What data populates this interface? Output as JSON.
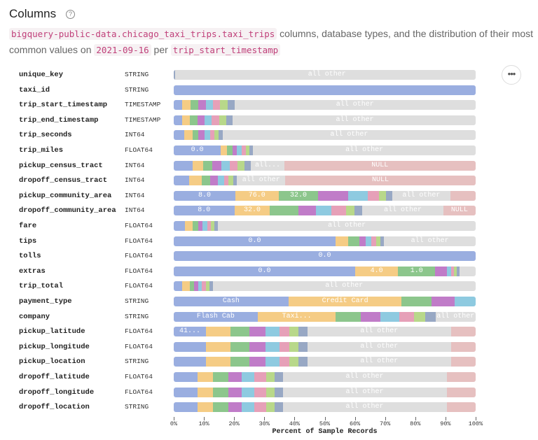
{
  "header": {
    "title": "Columns",
    "help_icon": "question-circle-icon",
    "desc": {
      "table": "bigquery-public-data.chicago_taxi_trips.taxi_trips",
      "text1": " columns, database types, and the distribution of their most common values on ",
      "date": "2021-09-16",
      "text2": " per ",
      "partition": "trip_start_timestamp"
    }
  },
  "more_button": "•••",
  "palette": {
    "c1": "#9aaee0",
    "c2": "#f5cc85",
    "c3": "#8cc68c",
    "c4": "#c07cc8",
    "c5": "#8ecae0",
    "c6": "#e6a0b8",
    "c7": "#b8d88a",
    "c8": "#98a8c4",
    "other": "#dedede",
    "null": "#e6c0c0"
  },
  "chart_data": {
    "type": "bar",
    "orientation": "horizontal",
    "stacked": true,
    "xlabel": "Percent of Sample Records",
    "xlim": [
      0,
      100
    ],
    "ticks": [
      "0%",
      "10%",
      "20%",
      "30%",
      "40%",
      "50%",
      "60%",
      "70%",
      "80%",
      "90%",
      "100%"
    ],
    "rows": [
      {
        "name": "unique_key",
        "type": "STRING",
        "segments": [
          {
            "v": 0.5,
            "c": "c8"
          },
          {
            "v": 1,
            "c": "other"
          },
          {
            "v": 98.5,
            "c": "other",
            "label": "all other"
          }
        ]
      },
      {
        "name": "taxi_id",
        "type": "STRING",
        "segments": [
          {
            "v": 100,
            "c": "c1"
          }
        ]
      },
      {
        "name": "trip_start_timestamp",
        "type": "TIMESTAMP",
        "segments": [
          {
            "v": 2.9,
            "c": "c1"
          },
          {
            "v": 2.7,
            "c": "c2"
          },
          {
            "v": 2.6,
            "c": "c3"
          },
          {
            "v": 2.4,
            "c": "c4"
          },
          {
            "v": 2.5,
            "c": "c5"
          },
          {
            "v": 2.2,
            "c": "c6"
          },
          {
            "v": 2.6,
            "c": "c7"
          },
          {
            "v": 2.2,
            "c": "c8"
          },
          {
            "v": 79.9,
            "c": "other",
            "label": "all other"
          }
        ]
      },
      {
        "name": "trip_end_timestamp",
        "type": "TIMESTAMP",
        "segments": [
          {
            "v": 2.9,
            "c": "c1"
          },
          {
            "v": 2.5,
            "c": "c2"
          },
          {
            "v": 2.5,
            "c": "c3"
          },
          {
            "v": 2.3,
            "c": "c4"
          },
          {
            "v": 2.4,
            "c": "c5"
          },
          {
            "v": 2.4,
            "c": "c6"
          },
          {
            "v": 2.4,
            "c": "c7"
          },
          {
            "v": 2.2,
            "c": "c8"
          },
          {
            "v": 80.8,
            "c": "other",
            "label": "all other"
          }
        ]
      },
      {
        "name": "trip_seconds",
        "type": "INT64",
        "segments": [
          {
            "v": 3.5,
            "c": "c1"
          },
          {
            "v": 2.7,
            "c": "c2"
          },
          {
            "v": 2.0,
            "c": "c3"
          },
          {
            "v": 1.9,
            "c": "c4"
          },
          {
            "v": 1.9,
            "c": "c5"
          },
          {
            "v": 1.5,
            "c": "c6"
          },
          {
            "v": 1.4,
            "c": "c7"
          },
          {
            "v": 1.3,
            "c": "c8"
          },
          {
            "v": 83.8,
            "c": "other",
            "label": "all other"
          }
        ]
      },
      {
        "name": "trip_miles",
        "type": "FLOAT64",
        "segments": [
          {
            "v": 15.6,
            "c": "c1",
            "label": "0.0"
          },
          {
            "v": 2.0,
            "c": "c2"
          },
          {
            "v": 1.8,
            "c": "c3"
          },
          {
            "v": 1.5,
            "c": "c4"
          },
          {
            "v": 1.6,
            "c": "c5"
          },
          {
            "v": 1.4,
            "c": "c6"
          },
          {
            "v": 1.2,
            "c": "c7"
          },
          {
            "v": 1.2,
            "c": "c8"
          },
          {
            "v": 73.7,
            "c": "other",
            "label": "all other"
          }
        ]
      },
      {
        "name": "pickup_census_tract",
        "type": "INT64",
        "segments": [
          {
            "v": 6.3,
            "c": "c1"
          },
          {
            "v": 3.4,
            "c": "c2"
          },
          {
            "v": 3.0,
            "c": "c3"
          },
          {
            "v": 3.0,
            "c": "c4"
          },
          {
            "v": 2.9,
            "c": "c5"
          },
          {
            "v": 2.5,
            "c": "c6"
          },
          {
            "v": 2.4,
            "c": "c7"
          },
          {
            "v": 2.1,
            "c": "c8"
          },
          {
            "v": 11.0,
            "c": "other",
            "label": "all..."
          },
          {
            "v": 63.4,
            "c": "null",
            "label": "NULL"
          }
        ]
      },
      {
        "name": "dropoff_census_tract",
        "type": "INT64",
        "segments": [
          {
            "v": 5.2,
            "c": "c1"
          },
          {
            "v": 4.0,
            "c": "c2"
          },
          {
            "v": 2.9,
            "c": "c3"
          },
          {
            "v": 2.6,
            "c": "c4"
          },
          {
            "v": 1.9,
            "c": "c5"
          },
          {
            "v": 1.4,
            "c": "c6"
          },
          {
            "v": 1.7,
            "c": "c7"
          },
          {
            "v": 1.3,
            "c": "c8"
          },
          {
            "v": 15.9,
            "c": "other",
            "label": "all other"
          },
          {
            "v": 63.1,
            "c": "null",
            "label": "NULL"
          }
        ]
      },
      {
        "name": "pickup_community_area",
        "type": "INT64",
        "segments": [
          {
            "v": 20.4,
            "c": "c1",
            "label": "8.0"
          },
          {
            "v": 14.3,
            "c": "c2",
            "label": "76.0"
          },
          {
            "v": 13.2,
            "c": "c3",
            "label": "32.0"
          },
          {
            "v": 9.8,
            "c": "c4"
          },
          {
            "v": 6.6,
            "c": "c5"
          },
          {
            "v": 3.6,
            "c": "c6"
          },
          {
            "v": 2.4,
            "c": "c7"
          },
          {
            "v": 2.1,
            "c": "c8"
          },
          {
            "v": 19.2,
            "c": "other",
            "label": "all other"
          },
          {
            "v": 8.4,
            "c": "null"
          }
        ]
      },
      {
        "name": "dropoff_community_area",
        "type": "INT64",
        "segments": [
          {
            "v": 20.1,
            "c": "c1",
            "label": "8.0"
          },
          {
            "v": 11.8,
            "c": "c2",
            "label": "32.0"
          },
          {
            "v": 9.4,
            "c": "c3"
          },
          {
            "v": 5.7,
            "c": "c4"
          },
          {
            "v": 5.2,
            "c": "c5"
          },
          {
            "v": 4.8,
            "c": "c6"
          },
          {
            "v": 2.9,
            "c": "c7"
          },
          {
            "v": 2.6,
            "c": "c8"
          },
          {
            "v": 26.8,
            "c": "other",
            "label": "all other"
          },
          {
            "v": 10.7,
            "c": "null",
            "label": "NULL"
          }
        ]
      },
      {
        "name": "fare",
        "type": "FLOAT64",
        "segments": [
          {
            "v": 3.7,
            "c": "c1"
          },
          {
            "v": 2.5,
            "c": "c2"
          },
          {
            "v": 1.9,
            "c": "c3"
          },
          {
            "v": 1.5,
            "c": "c4"
          },
          {
            "v": 1.5,
            "c": "c5"
          },
          {
            "v": 1.2,
            "c": "c6"
          },
          {
            "v": 1.2,
            "c": "c7"
          },
          {
            "v": 1.2,
            "c": "c8"
          },
          {
            "v": 85.3,
            "c": "other",
            "label": "all other"
          }
        ]
      },
      {
        "name": "tips",
        "type": "FLOAT64",
        "segments": [
          {
            "v": 53.6,
            "c": "c1",
            "label": "0.0"
          },
          {
            "v": 4.2,
            "c": "c2"
          },
          {
            "v": 3.6,
            "c": "c3"
          },
          {
            "v": 2.2,
            "c": "c4"
          },
          {
            "v": 1.9,
            "c": "c5"
          },
          {
            "v": 1.5,
            "c": "c6"
          },
          {
            "v": 1.4,
            "c": "c7"
          },
          {
            "v": 1.3,
            "c": "c8"
          },
          {
            "v": 30.3,
            "c": "other",
            "label": "all other"
          }
        ]
      },
      {
        "name": "tolls",
        "type": "FLOAT64",
        "segments": [
          {
            "v": 100,
            "c": "c1",
            "label": "0.0"
          }
        ]
      },
      {
        "name": "extras",
        "type": "FLOAT64",
        "segments": [
          {
            "v": 60.1,
            "c": "c1",
            "label": "0.0"
          },
          {
            "v": 14.2,
            "c": "c2",
            "label": "4.0"
          },
          {
            "v": 12.3,
            "c": "c3",
            "label": "1.0"
          },
          {
            "v": 3.8,
            "c": "c4"
          },
          {
            "v": 1.6,
            "c": "c5"
          },
          {
            "v": 0.9,
            "c": "c6"
          },
          {
            "v": 0.9,
            "c": "c7"
          },
          {
            "v": 0.9,
            "c": "c8"
          },
          {
            "v": 5.3,
            "c": "other"
          }
        ]
      },
      {
        "name": "trip_total",
        "type": "FLOAT64",
        "segments": [
          {
            "v": 2.9,
            "c": "c1"
          },
          {
            "v": 2.4,
            "c": "c2"
          },
          {
            "v": 1.5,
            "c": "c3"
          },
          {
            "v": 1.4,
            "c": "c4"
          },
          {
            "v": 1.2,
            "c": "c5"
          },
          {
            "v": 1.2,
            "c": "c6"
          },
          {
            "v": 1.3,
            "c": "c7"
          },
          {
            "v": 1.0,
            "c": "c8"
          },
          {
            "v": 87.1,
            "c": "other",
            "label": "all other"
          }
        ]
      },
      {
        "name": "payment_type",
        "type": "STRING",
        "segments": [
          {
            "v": 38.0,
            "c": "c1",
            "label": "Cash"
          },
          {
            "v": 37.5,
            "c": "c2",
            "label": "Credit Card"
          },
          {
            "v": 9.8,
            "c": "c3"
          },
          {
            "v": 7.7,
            "c": "c4"
          },
          {
            "v": 7.0,
            "c": "c5"
          }
        ]
      },
      {
        "name": "company",
        "type": "STRING",
        "segments": [
          {
            "v": 27.8,
            "c": "c1",
            "label": "Flash Cab"
          },
          {
            "v": 25.9,
            "c": "c2",
            "label": "Taxi..."
          },
          {
            "v": 8.2,
            "c": "c3"
          },
          {
            "v": 6.6,
            "c": "c4"
          },
          {
            "v": 6.3,
            "c": "c5"
          },
          {
            "v": 4.7,
            "c": "c6"
          },
          {
            "v": 3.9,
            "c": "c7"
          },
          {
            "v": 3.3,
            "c": "c8"
          },
          {
            "v": 13.3,
            "c": "other",
            "label": "all other"
          }
        ]
      },
      {
        "name": "pickup_latitude",
        "type": "FLOAT64",
        "segments": [
          {
            "v": 10.7,
            "c": "c1",
            "label": "41..."
          },
          {
            "v": 8.0,
            "c": "c2"
          },
          {
            "v": 6.4,
            "c": "c3"
          },
          {
            "v": 5.4,
            "c": "c4"
          },
          {
            "v": 4.5,
            "c": "c5"
          },
          {
            "v": 3.3,
            "c": "c6"
          },
          {
            "v": 3.0,
            "c": "c7"
          },
          {
            "v": 3.0,
            "c": "c8"
          },
          {
            "v": 47.5,
            "c": "other",
            "label": "all other"
          },
          {
            "v": 8.2,
            "c": "null"
          }
        ]
      },
      {
        "name": "pickup_longitude",
        "type": "FLOAT64",
        "segments": [
          {
            "v": 10.7,
            "c": "c1"
          },
          {
            "v": 8.0,
            "c": "c2"
          },
          {
            "v": 6.4,
            "c": "c3"
          },
          {
            "v": 5.4,
            "c": "c4"
          },
          {
            "v": 4.5,
            "c": "c5"
          },
          {
            "v": 3.3,
            "c": "c6"
          },
          {
            "v": 3.0,
            "c": "c7"
          },
          {
            "v": 3.0,
            "c": "c8"
          },
          {
            "v": 47.5,
            "c": "other",
            "label": "all other"
          },
          {
            "v": 8.2,
            "c": "null"
          }
        ]
      },
      {
        "name": "pickup_location",
        "type": "STRING",
        "segments": [
          {
            "v": 10.7,
            "c": "c1"
          },
          {
            "v": 8.0,
            "c": "c2"
          },
          {
            "v": 6.4,
            "c": "c3"
          },
          {
            "v": 5.4,
            "c": "c4"
          },
          {
            "v": 4.5,
            "c": "c5"
          },
          {
            "v": 3.3,
            "c": "c6"
          },
          {
            "v": 3.0,
            "c": "c7"
          },
          {
            "v": 3.0,
            "c": "c8"
          },
          {
            "v": 47.5,
            "c": "other",
            "label": "all other"
          },
          {
            "v": 8.2,
            "c": "null"
          }
        ]
      },
      {
        "name": "dropoff_latitude",
        "type": "FLOAT64",
        "segments": [
          {
            "v": 8.0,
            "c": "c1"
          },
          {
            "v": 5.1,
            "c": "c2"
          },
          {
            "v": 4.9,
            "c": "c3"
          },
          {
            "v": 4.6,
            "c": "c4"
          },
          {
            "v": 4.1,
            "c": "c5"
          },
          {
            "v": 3.9,
            "c": "c6"
          },
          {
            "v": 2.9,
            "c": "c7"
          },
          {
            "v": 2.6,
            "c": "c8"
          },
          {
            "v": 54.3,
            "c": "other",
            "label": "all other"
          },
          {
            "v": 9.6,
            "c": "null"
          }
        ]
      },
      {
        "name": "dropoff_longitude",
        "type": "FLOAT64",
        "segments": [
          {
            "v": 8.0,
            "c": "c1"
          },
          {
            "v": 5.1,
            "c": "c2"
          },
          {
            "v": 4.9,
            "c": "c3"
          },
          {
            "v": 4.6,
            "c": "c4"
          },
          {
            "v": 4.1,
            "c": "c5"
          },
          {
            "v": 3.9,
            "c": "c6"
          },
          {
            "v": 2.9,
            "c": "c7"
          },
          {
            "v": 2.6,
            "c": "c8"
          },
          {
            "v": 54.3,
            "c": "other",
            "label": "all other"
          },
          {
            "v": 9.6,
            "c": "null"
          }
        ]
      },
      {
        "name": "dropoff_location",
        "type": "STRING",
        "segments": [
          {
            "v": 8.0,
            "c": "c1"
          },
          {
            "v": 5.1,
            "c": "c2"
          },
          {
            "v": 4.9,
            "c": "c3"
          },
          {
            "v": 4.6,
            "c": "c4"
          },
          {
            "v": 4.1,
            "c": "c5"
          },
          {
            "v": 3.9,
            "c": "c6"
          },
          {
            "v": 2.9,
            "c": "c7"
          },
          {
            "v": 2.6,
            "c": "c8"
          },
          {
            "v": 54.3,
            "c": "other",
            "label": "all other"
          },
          {
            "v": 9.6,
            "c": "null"
          }
        ]
      }
    ]
  }
}
